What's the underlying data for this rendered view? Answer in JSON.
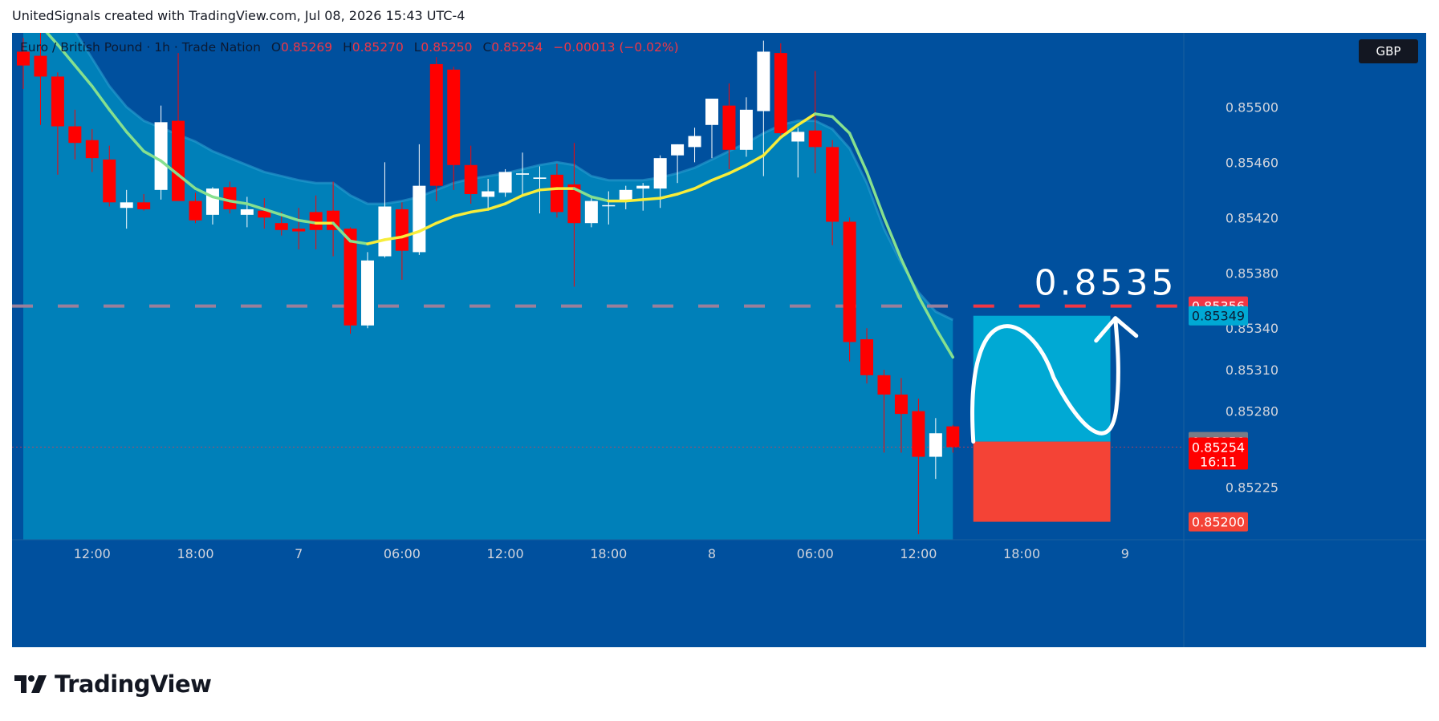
{
  "header": {
    "text": "UnitedSignals created with TradingView.com, Jul 08, 2026 15:43 UTC-4"
  },
  "legend": {
    "symbol": "Euro / British Pound · 1h · Trade Nation",
    "open_label": "O",
    "open": "0.85269",
    "high_label": "H",
    "high": "0.85270",
    "low_label": "L",
    "low": "0.85250",
    "close_label": "C",
    "close": "0.85254",
    "change": "−0.00013 (−0.02%)"
  },
  "currency_badge": "GBP",
  "annotation": {
    "target_text": "0.8535"
  },
  "price_labels": {
    "target_line": "0.85356",
    "ema_value": "0.85349",
    "prev_close": "0.85258",
    "last_price": "0.85254",
    "countdown": "16:11",
    "stop": "0.85200"
  },
  "logo": {
    "text": "TradingView"
  },
  "colors": {
    "background": "#00509e",
    "band_fill": "#0080b9",
    "bullish_candle": "#ffffff",
    "bearish_candle": "#ff0000",
    "target_line": "#f23645",
    "profit_zone": "#00a9d4",
    "loss_zone": "#f44336",
    "ema_line": "#f7ed3a",
    "ema_line_down": "#86e08f"
  },
  "chart_data": {
    "type": "candlestick",
    "symbol": "EURGBP",
    "timeframe": "1h",
    "y_axis": {
      "ticks": [
        "0.85500",
        "0.85460",
        "0.85420",
        "0.85380",
        "0.85340",
        "0.85310",
        "0.85280",
        "0.85225"
      ],
      "range": [
        0.85187,
        0.85553
      ]
    },
    "x_axis": {
      "ticks": [
        "12:00",
        "18:00",
        "7",
        "06:00",
        "12:00",
        "18:00",
        "8",
        "06:00",
        "12:00",
        "18:00",
        "9"
      ],
      "tick_bar_index": [
        4,
        10,
        16,
        22,
        28,
        34,
        40,
        46,
        52,
        58,
        64
      ]
    },
    "candles": [
      {
        "o": 0.8554,
        "h": 0.8555,
        "l": 0.85513,
        "c": 0.8553
      },
      {
        "o": 0.85537,
        "h": 0.85554,
        "l": 0.85487,
        "c": 0.85522
      },
      {
        "o": 0.85522,
        "h": 0.85525,
        "l": 0.85451,
        "c": 0.85486
      },
      {
        "o": 0.85486,
        "h": 0.85498,
        "l": 0.85462,
        "c": 0.85474
      },
      {
        "o": 0.85476,
        "h": 0.85484,
        "l": 0.85453,
        "c": 0.85463
      },
      {
        "o": 0.85462,
        "h": 0.85472,
        "l": 0.85428,
        "c": 0.85431
      },
      {
        "o": 0.85427,
        "h": 0.8544,
        "l": 0.85412,
        "c": 0.85431
      },
      {
        "o": 0.85431,
        "h": 0.85437,
        "l": 0.85425,
        "c": 0.85426
      },
      {
        "o": 0.8544,
        "h": 0.85501,
        "l": 0.85433,
        "c": 0.85489
      },
      {
        "o": 0.8549,
        "h": 0.85539,
        "l": 0.85434,
        "c": 0.85432
      },
      {
        "o": 0.85432,
        "h": 0.85438,
        "l": 0.85416,
        "c": 0.85418
      },
      {
        "o": 0.85422,
        "h": 0.85442,
        "l": 0.85415,
        "c": 0.85441
      },
      {
        "o": 0.85442,
        "h": 0.85446,
        "l": 0.85423,
        "c": 0.85426
      },
      {
        "o": 0.85422,
        "h": 0.85435,
        "l": 0.85413,
        "c": 0.85426
      },
      {
        "o": 0.85425,
        "h": 0.85434,
        "l": 0.85412,
        "c": 0.8542
      },
      {
        "o": 0.85416,
        "h": 0.85424,
        "l": 0.85407,
        "c": 0.85411
      },
      {
        "o": 0.85412,
        "h": 0.85427,
        "l": 0.85397,
        "c": 0.8541
      },
      {
        "o": 0.85424,
        "h": 0.85436,
        "l": 0.85397,
        "c": 0.85411
      },
      {
        "o": 0.85425,
        "h": 0.85446,
        "l": 0.85392,
        "c": 0.85411
      },
      {
        "o": 0.85412,
        "h": 0.85413,
        "l": 0.85336,
        "c": 0.85342
      },
      {
        "o": 0.85342,
        "h": 0.85395,
        "l": 0.8534,
        "c": 0.85389
      },
      {
        "o": 0.85392,
        "h": 0.8546,
        "l": 0.85391,
        "c": 0.85428
      },
      {
        "o": 0.85426,
        "h": 0.85431,
        "l": 0.85375,
        "c": 0.85396
      },
      {
        "o": 0.85395,
        "h": 0.85473,
        "l": 0.85393,
        "c": 0.85443
      },
      {
        "o": 0.85531,
        "h": 0.85536,
        "l": 0.85432,
        "c": 0.85443
      },
      {
        "o": 0.85527,
        "h": 0.85529,
        "l": 0.8544,
        "c": 0.85458
      },
      {
        "o": 0.85458,
        "h": 0.85472,
        "l": 0.8543,
        "c": 0.85437
      },
      {
        "o": 0.85435,
        "h": 0.85448,
        "l": 0.85425,
        "c": 0.85439
      },
      {
        "o": 0.85438,
        "h": 0.85455,
        "l": 0.85435,
        "c": 0.85453
      },
      {
        "o": 0.85451,
        "h": 0.85467,
        "l": 0.85435,
        "c": 0.85452
      },
      {
        "o": 0.85448,
        "h": 0.85457,
        "l": 0.85423,
        "c": 0.85449
      },
      {
        "o": 0.85451,
        "h": 0.85459,
        "l": 0.8542,
        "c": 0.85424
      },
      {
        "o": 0.85444,
        "h": 0.85474,
        "l": 0.8537,
        "c": 0.85416
      },
      {
        "o": 0.85416,
        "h": 0.85434,
        "l": 0.85413,
        "c": 0.85432
      },
      {
        "o": 0.85429,
        "h": 0.85439,
        "l": 0.85415,
        "c": 0.85429
      },
      {
        "o": 0.85432,
        "h": 0.85443,
        "l": 0.85426,
        "c": 0.8544
      },
      {
        "o": 0.85441,
        "h": 0.85445,
        "l": 0.85425,
        "c": 0.85443
      },
      {
        "o": 0.85441,
        "h": 0.85465,
        "l": 0.85427,
        "c": 0.85463
      },
      {
        "o": 0.85465,
        "h": 0.85473,
        "l": 0.85445,
        "c": 0.85473
      },
      {
        "o": 0.85471,
        "h": 0.85485,
        "l": 0.8546,
        "c": 0.85479
      },
      {
        "o": 0.85487,
        "h": 0.85506,
        "l": 0.85463,
        "c": 0.85506
      },
      {
        "o": 0.85501,
        "h": 0.85517,
        "l": 0.85455,
        "c": 0.85469
      },
      {
        "o": 0.85469,
        "h": 0.85507,
        "l": 0.85464,
        "c": 0.85498
      },
      {
        "o": 0.85497,
        "h": 0.85548,
        "l": 0.8545,
        "c": 0.8554
      },
      {
        "o": 0.85539,
        "h": 0.85546,
        "l": 0.85479,
        "c": 0.85481
      },
      {
        "o": 0.85475,
        "h": 0.85485,
        "l": 0.85449,
        "c": 0.85482
      },
      {
        "o": 0.85483,
        "h": 0.85526,
        "l": 0.85452,
        "c": 0.85471
      },
      {
        "o": 0.85471,
        "h": 0.85476,
        "l": 0.854,
        "c": 0.85417
      },
      {
        "o": 0.85417,
        "h": 0.8542,
        "l": 0.85316,
        "c": 0.8533
      },
      {
        "o": 0.85332,
        "h": 0.8534,
        "l": 0.853,
        "c": 0.85306
      },
      {
        "o": 0.85306,
        "h": 0.8531,
        "l": 0.8525,
        "c": 0.85292
      },
      {
        "o": 0.85292,
        "h": 0.85304,
        "l": 0.8525,
        "c": 0.85278
      },
      {
        "o": 0.8528,
        "h": 0.85289,
        "l": 0.85191,
        "c": 0.85247
      },
      {
        "o": 0.85247,
        "h": 0.85275,
        "l": 0.85231,
        "c": 0.85264
      },
      {
        "o": 0.85269,
        "h": 0.8527,
        "l": 0.8525,
        "c": 0.85254
      }
    ],
    "moving_average": [
      0.85572,
      0.85559,
      0.85545,
      0.8553,
      0.85515,
      0.85498,
      0.85482,
      0.85468,
      0.85461,
      0.85451,
      0.85441,
      0.85435,
      0.85432,
      0.8543,
      0.85426,
      0.85422,
      0.85418,
      0.85416,
      0.85416,
      0.85403,
      0.85401,
      0.85404,
      0.85406,
      0.8541,
      0.85416,
      0.85421,
      0.85424,
      0.85426,
      0.8543,
      0.85436,
      0.8544,
      0.85441,
      0.85441,
      0.85435,
      0.85432,
      0.85432,
      0.85433,
      0.85434,
      0.85437,
      0.85441,
      0.85447,
      0.85452,
      0.85458,
      0.85465,
      0.85478,
      0.85487,
      0.85495,
      0.85493,
      0.85481,
      0.85453,
      0.8542,
      0.8539,
      0.85363,
      0.8534,
      0.85319
    ],
    "band_upper": [
      0.856,
      0.8559,
      0.85575,
      0.85555,
      0.85535,
      0.85515,
      0.855,
      0.8549,
      0.85485,
      0.8548,
      0.85475,
      0.85468,
      0.85463,
      0.85458,
      0.85453,
      0.8545,
      0.85447,
      0.85445,
      0.85445,
      0.85436,
      0.8543,
      0.8543,
      0.85432,
      0.85435,
      0.8544,
      0.85445,
      0.85448,
      0.8545,
      0.85452,
      0.85455,
      0.85458,
      0.8546,
      0.85458,
      0.8545,
      0.85447,
      0.85447,
      0.85447,
      0.85449,
      0.85452,
      0.85456,
      0.85462,
      0.85468,
      0.85474,
      0.85481,
      0.85487,
      0.8549,
      0.8549,
      0.85484,
      0.8547,
      0.85445,
      0.85412,
      0.85387,
      0.85366,
      0.85352,
      0.85346
    ],
    "target_line": 0.85356,
    "target_annotation": 0.8535,
    "current_price": 0.85254,
    "position": {
      "entry": 0.85258,
      "target": 0.85349,
      "stop": 0.852,
      "side": "long"
    }
  }
}
